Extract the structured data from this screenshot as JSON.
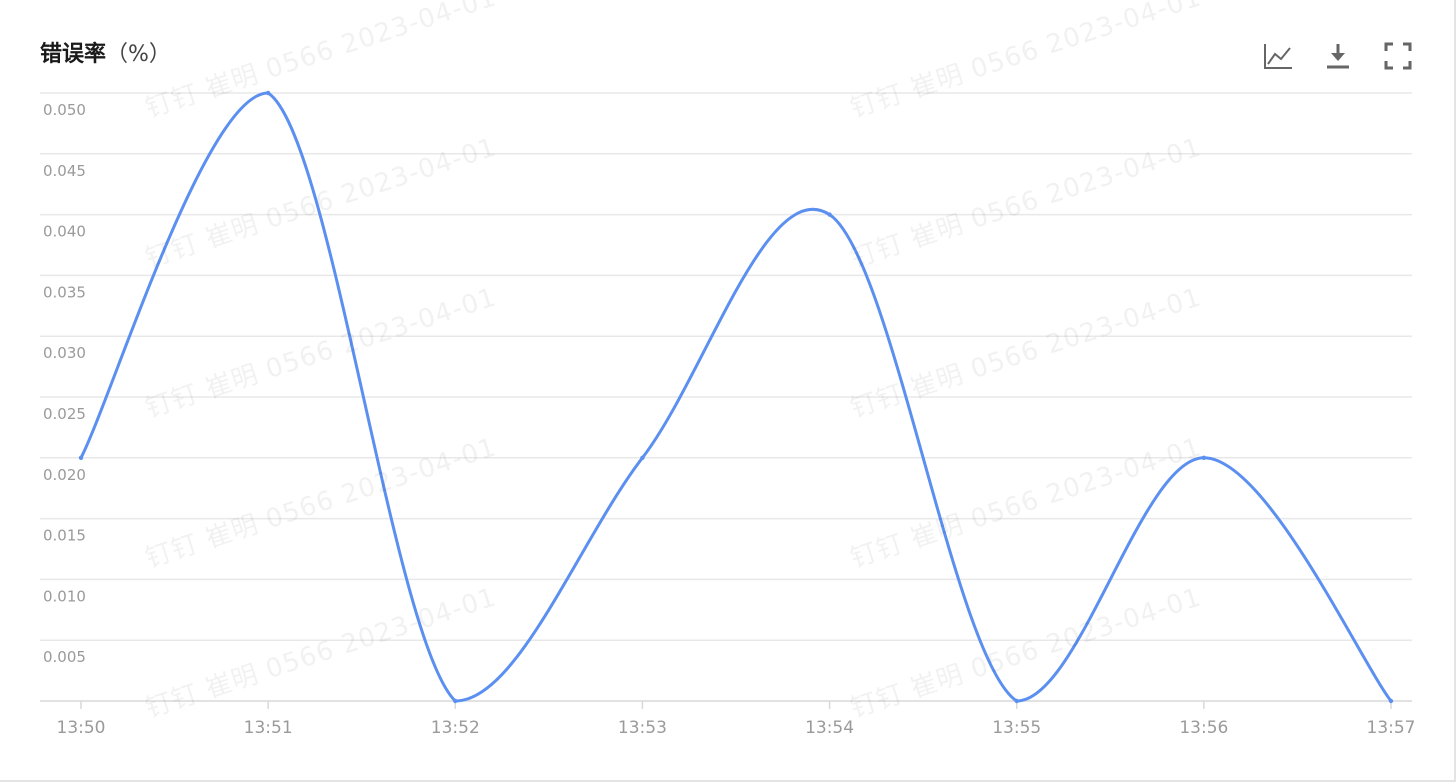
{
  "header": {
    "title": "错误率",
    "unit": "（%）"
  },
  "toolbar": {
    "icons": [
      "line-chart-icon",
      "download-icon",
      "fullscreen-icon"
    ]
  },
  "watermark": {
    "text": "钉钉 崔明 0566 2023-04-01"
  },
  "colors": {
    "line": "#5b8ff0",
    "grid": "#e8e8e8",
    "axis": "#d9d9d9",
    "tick": "#9a9a9a"
  },
  "chart_data": {
    "type": "line",
    "title": "错误率（%）",
    "smooth": true,
    "grid": true,
    "x": [
      "13:50",
      "13:51",
      "13:52",
      "13:53",
      "13:54",
      "13:55",
      "13:56",
      "13:57"
    ],
    "y_ticks": [
      "0.005",
      "0.010",
      "0.015",
      "0.020",
      "0.025",
      "0.030",
      "0.035",
      "0.040",
      "0.045",
      "0.050"
    ],
    "ylim": [
      0,
      0.05
    ],
    "series": [
      {
        "values": [
          0.02,
          0.05,
          0,
          0.02,
          0.04,
          0,
          0.02,
          0
        ]
      }
    ]
  }
}
